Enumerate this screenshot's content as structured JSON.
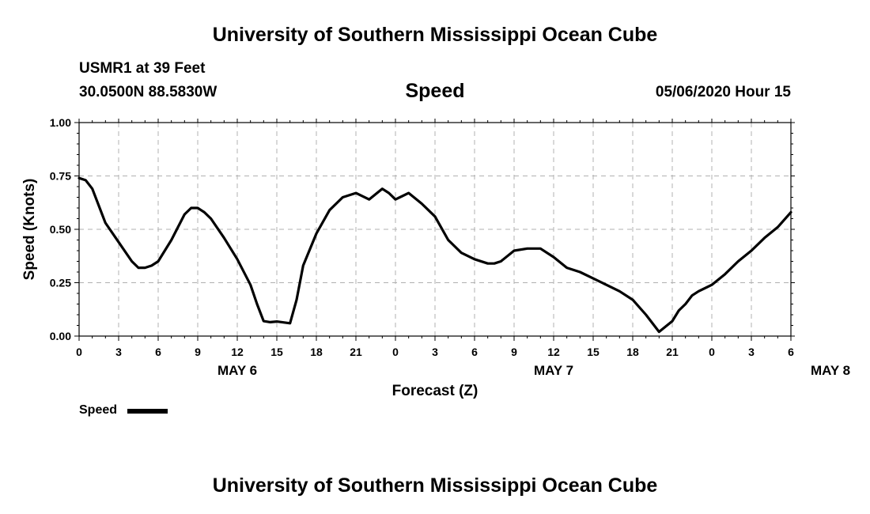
{
  "header": {
    "title": "University of Southern Mississippi Ocean Cube",
    "station": "USMR1 at 39 Feet",
    "location": "30.0500N 88.5830W",
    "plot_title": "Speed",
    "datetime": "05/06/2020 Hour 15"
  },
  "footer": {
    "title": "University of Southern Mississippi Ocean Cube"
  },
  "legend": {
    "label": "Speed",
    "color": "#000000"
  },
  "chart_data": {
    "type": "line",
    "title": "Speed",
    "xlabel": "Forecast (Z)",
    "ylabel": "Speed (Knots)",
    "x_ticks": [
      "0",
      "3",
      "6",
      "9",
      "12",
      "15",
      "18",
      "21",
      "0",
      "3",
      "6",
      "9",
      "12",
      "15",
      "18",
      "21",
      "0",
      "3",
      "6"
    ],
    "day_labels": [
      {
        "label": "MAY 6",
        "at_hour": 12
      },
      {
        "label": "MAY 7",
        "at_hour": 36
      },
      {
        "label": "MAY 8",
        "at_hour": 57
      }
    ],
    "y_ticks": [
      "0.00",
      "0.25",
      "0.50",
      "0.75",
      "1.00"
    ],
    "xlim": [
      0,
      54
    ],
    "ylim": [
      0,
      1.0
    ],
    "grid": true,
    "series": [
      {
        "name": "Speed",
        "color": "#000000",
        "x": [
          0,
          0.5,
          1,
          2,
          3,
          4,
          4.5,
          5,
          5.5,
          6,
          7,
          8,
          8.5,
          9,
          9.5,
          10,
          11,
          12,
          13,
          13.5,
          14,
          14.5,
          15,
          16,
          16.5,
          17,
          18,
          19,
          20,
          21,
          22,
          23,
          23.5,
          24,
          25,
          26,
          27,
          28,
          29,
          30,
          31,
          31.5,
          32,
          33,
          34,
          35,
          36,
          37,
          38,
          39,
          40,
          41,
          42,
          43,
          44,
          45,
          45.5,
          46,
          46.5,
          47,
          48,
          49,
          50,
          51,
          52,
          53,
          54
        ],
        "y": [
          0.74,
          0.73,
          0.69,
          0.53,
          0.44,
          0.35,
          0.32,
          0.32,
          0.33,
          0.35,
          0.45,
          0.57,
          0.6,
          0.6,
          0.58,
          0.55,
          0.46,
          0.36,
          0.24,
          0.15,
          0.07,
          0.065,
          0.068,
          0.06,
          0.17,
          0.33,
          0.48,
          0.59,
          0.65,
          0.67,
          0.64,
          0.69,
          0.67,
          0.64,
          0.67,
          0.62,
          0.56,
          0.45,
          0.39,
          0.36,
          0.34,
          0.34,
          0.35,
          0.4,
          0.41,
          0.41,
          0.37,
          0.32,
          0.3,
          0.27,
          0.24,
          0.21,
          0.17,
          0.1,
          0.02,
          0.07,
          0.12,
          0.15,
          0.19,
          0.21,
          0.24,
          0.29,
          0.35,
          0.4,
          0.46,
          0.51,
          0.58
        ]
      }
    ]
  }
}
